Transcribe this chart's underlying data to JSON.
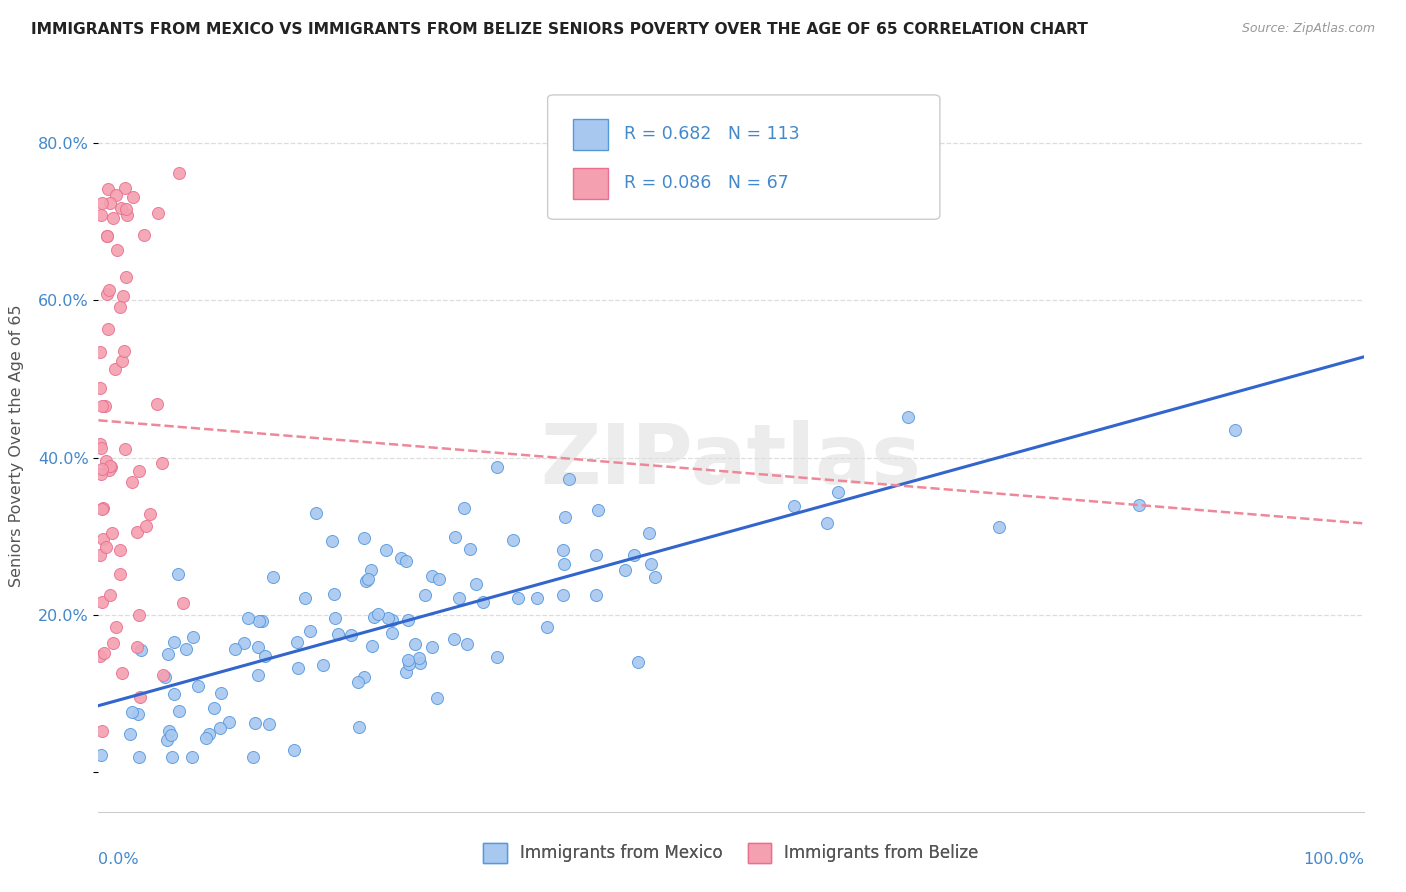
{
  "title": "IMMIGRANTS FROM MEXICO VS IMMIGRANTS FROM BELIZE SENIORS POVERTY OVER THE AGE OF 65 CORRELATION CHART",
  "source": "Source: ZipAtlas.com",
  "ylabel": "Seniors Poverty Over the Age of 65",
  "mexico_R": 0.682,
  "mexico_N": 113,
  "belize_R": 0.086,
  "belize_N": 67,
  "mexico_color": "#a8c8f0",
  "belize_color": "#f4a0b0",
  "mexico_edge_color": "#5599dd",
  "belize_edge_color": "#e87090",
  "mexico_line_color": "#3366cc",
  "belize_line_color": "#ee8899",
  "background_color": "#ffffff",
  "legend_label_mexico": "Immigrants from Mexico",
  "legend_label_belize": "Immigrants from Belize",
  "watermark_text": "ZIPatlas",
  "ytick_vals": [
    0.0,
    0.2,
    0.4,
    0.6,
    0.8
  ],
  "ytick_labels": [
    "",
    "20.0%",
    "40.0%",
    "60.0%",
    "80.0%"
  ],
  "xlim": [
    0.0,
    1.0
  ],
  "ylim": [
    -0.05,
    0.88
  ]
}
